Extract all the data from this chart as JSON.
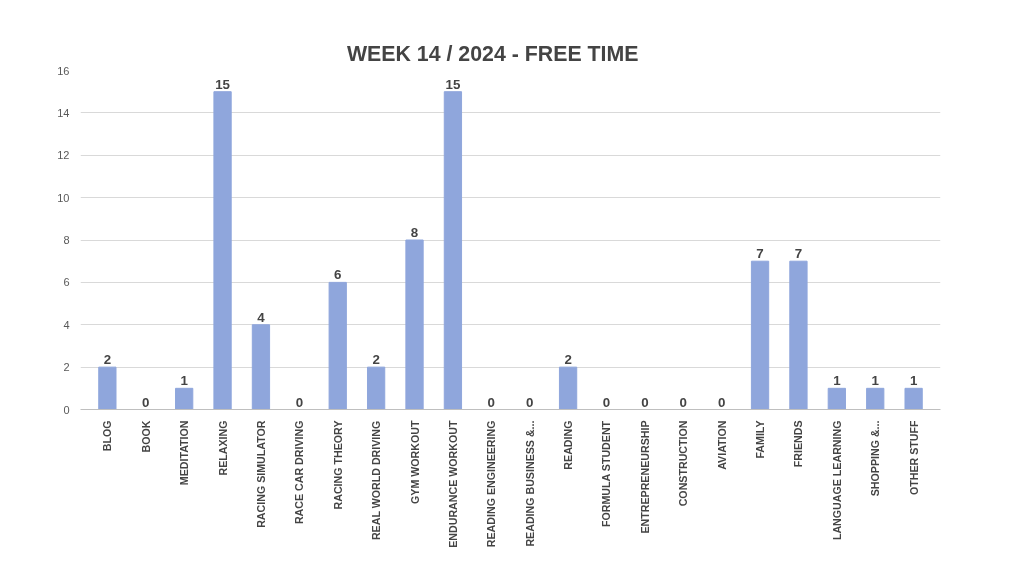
{
  "chart_data": {
    "type": "bar",
    "title": "WEEK  14 / 2024      - FREE TIME",
    "categories": [
      "BLOG",
      "BOOK",
      "MEDITATION",
      "RELAXING",
      "RACING SIMULATOR",
      "RACE CAR DRIVING",
      "RACING THEORY",
      "REAL WORLD DRIVING",
      "GYM WORKOUT",
      "ENDURANCE WORKOUT",
      "READING ENGINEERING",
      "READING BUSINESS &...",
      "READING",
      "FORMULA STUDENT",
      "ENTREPRENEURSHIP",
      "CONSTRUCTION",
      "AVIATION",
      "FAMILY",
      "FRIENDS",
      "LANGUAGE LEARNING",
      "SHOPPING &...",
      "OTHER STUFF"
    ],
    "values": [
      2,
      0,
      1,
      15,
      4,
      0,
      6,
      2,
      8,
      15,
      0,
      0,
      2,
      0,
      0,
      0,
      0,
      7,
      7,
      1,
      1,
      1
    ],
    "color": "#8fa6dc",
    "ylim": [
      0,
      16
    ],
    "yticks": [
      0,
      2,
      4,
      6,
      8,
      10,
      12,
      14,
      16
    ],
    "grid": "y",
    "data_labels": true
  }
}
